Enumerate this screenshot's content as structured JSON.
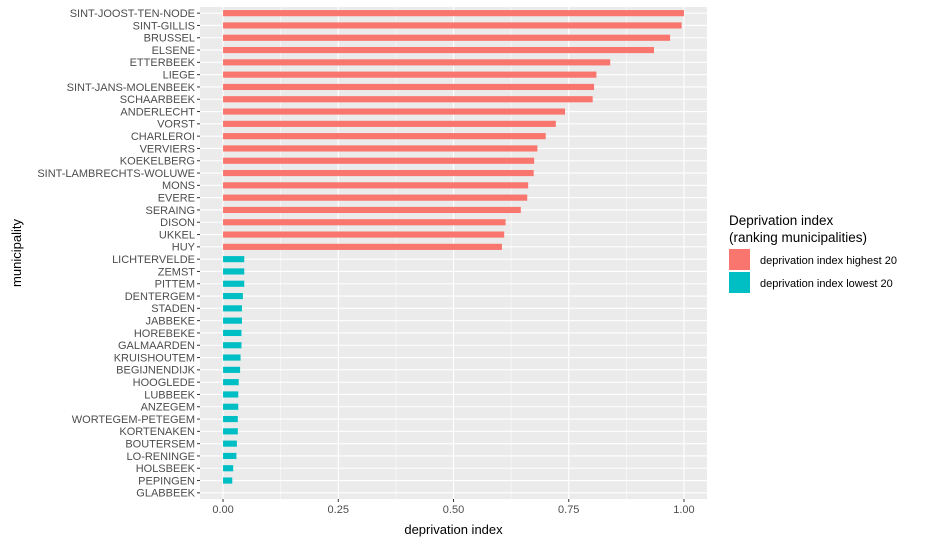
{
  "chart_data": {
    "type": "bar",
    "orientation": "horizontal",
    "xlabel": "deprivation index",
    "ylabel": "municipality",
    "xlim": [
      -0.05,
      1.05
    ],
    "x_ticks": [
      0.0,
      0.25,
      0.5,
      0.75,
      1.0
    ],
    "x_tick_labels": [
      "0.00",
      "0.25",
      "0.50",
      "0.75",
      "1.00"
    ],
    "grid": true,
    "legend_position": "right",
    "legend": {
      "title_line1": "Deprivation index",
      "title_line2": "(ranking municipalities)",
      "entries": [
        {
          "key": "highest",
          "label": "deprivation index highest 20",
          "color": "#F8766D"
        },
        {
          "key": "lowest",
          "label": "deprivation index lowest 20",
          "color": "#00BFC4"
        }
      ]
    },
    "categories": [
      "SINT-JOOST-TEN-NODE",
      "SINT-GILLIS",
      "BRUSSEL",
      "ELSENE",
      "ETTERBEEK",
      "LIEGE",
      "SINT-JANS-MOLENBEEK",
      "SCHAARBEEK",
      "ANDERLECHT",
      "VORST",
      "CHARLEROI",
      "VERVIERS",
      "KOEKELBERG",
      "SINT-LAMBRECHTS-WOLUWE",
      "MONS",
      "EVERE",
      "SERAING",
      "DISON",
      "UKKEL",
      "HUY",
      "LICHTERVELDE",
      "ZEMST",
      "PITTEM",
      "DENTERGEM",
      "STADEN",
      "JABBEKE",
      "HOREBEKE",
      "GALMAARDEN",
      "KRUISHOUTEM",
      "BEGIJNENDIJK",
      "HOOGLEDE",
      "LUBBEEK",
      "ANZEGEM",
      "WORTEGEM-PETEGEM",
      "KORTENAKEN",
      "BOUTERSEM",
      "LO-RENINGE",
      "HOLSBEEK",
      "PEPINGEN",
      "GLABBEEK"
    ],
    "values": [
      1.0,
      0.995,
      0.97,
      0.935,
      0.84,
      0.81,
      0.805,
      0.802,
      0.742,
      0.722,
      0.7,
      0.682,
      0.675,
      0.674,
      0.662,
      0.66,
      0.646,
      0.613,
      0.61,
      0.605,
      0.046,
      0.046,
      0.046,
      0.043,
      0.041,
      0.041,
      0.04,
      0.04,
      0.038,
      0.037,
      0.034,
      0.033,
      0.033,
      0.032,
      0.032,
      0.03,
      0.029,
      0.022,
      0.02,
      0.0
    ],
    "groups": [
      "highest",
      "highest",
      "highest",
      "highest",
      "highest",
      "highest",
      "highest",
      "highest",
      "highest",
      "highest",
      "highest",
      "highest",
      "highest",
      "highest",
      "highest",
      "highest",
      "highest",
      "highest",
      "highest",
      "highest",
      "lowest",
      "lowest",
      "lowest",
      "lowest",
      "lowest",
      "lowest",
      "lowest",
      "lowest",
      "lowest",
      "lowest",
      "lowest",
      "lowest",
      "lowest",
      "lowest",
      "lowest",
      "lowest",
      "lowest",
      "lowest",
      "lowest",
      "lowest"
    ],
    "colors": {
      "panel_background": "#EBEBEB",
      "grid_major": "#FFFFFF",
      "tick_text": "#4D4D4D"
    }
  }
}
